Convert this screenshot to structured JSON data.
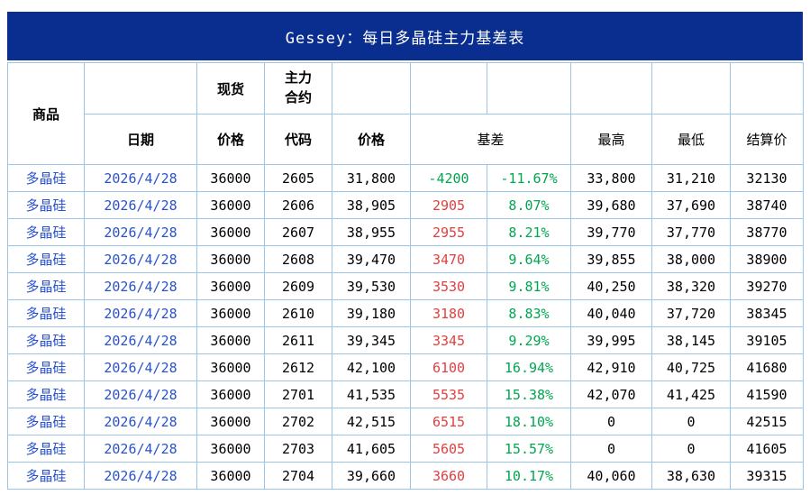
{
  "title": "Gessey：每日多晶硅主力基差表",
  "colors": {
    "title_bg": "#0A2E8F",
    "border": "#9DC3E6",
    "blue_text": "#2952CC",
    "red": "#E04040",
    "green": "#00A650"
  },
  "chart_data": {
    "type": "table",
    "header": {
      "commodity": "商品",
      "date": "日期",
      "spot_group": "现货",
      "main_contract_group": [
        "主力",
        "合约"
      ],
      "spot_price": "价格",
      "code": "代码",
      "price": "价格",
      "basis": "基差",
      "high": "最高",
      "low": "最低",
      "settle": "结算价"
    },
    "rows": [
      {
        "commodity": "多晶硅",
        "date": "2026/4/28",
        "spot": "36000",
        "code": "2605",
        "price": "31,800",
        "basis": "-4200",
        "basis_class": "green",
        "pct": "-11.67%",
        "high": "33,800",
        "low": "31,210",
        "settle": "32130"
      },
      {
        "commodity": "多晶硅",
        "date": "2026/4/28",
        "spot": "36000",
        "code": "2606",
        "price": "38,905",
        "basis": "2905",
        "basis_class": "red",
        "pct": "8.07%",
        "high": "39,680",
        "low": "37,690",
        "settle": "38740"
      },
      {
        "commodity": "多晶硅",
        "date": "2026/4/28",
        "spot": "36000",
        "code": "2607",
        "price": "38,955",
        "basis": "2955",
        "basis_class": "red",
        "pct": "8.21%",
        "high": "39,770",
        "low": "37,770",
        "settle": "38770"
      },
      {
        "commodity": "多晶硅",
        "date": "2026/4/28",
        "spot": "36000",
        "code": "2608",
        "price": "39,470",
        "basis": "3470",
        "basis_class": "red",
        "pct": "9.64%",
        "high": "39,855",
        "low": "38,000",
        "settle": "38900"
      },
      {
        "commodity": "多晶硅",
        "date": "2026/4/28",
        "spot": "36000",
        "code": "2609",
        "price": "39,530",
        "basis": "3530",
        "basis_class": "red",
        "pct": "9.81%",
        "high": "40,250",
        "low": "38,320",
        "settle": "39270"
      },
      {
        "commodity": "多晶硅",
        "date": "2026/4/28",
        "spot": "36000",
        "code": "2610",
        "price": "39,180",
        "basis": "3180",
        "basis_class": "red",
        "pct": "8.83%",
        "high": "40,040",
        "low": "37,720",
        "settle": "38345"
      },
      {
        "commodity": "多晶硅",
        "date": "2026/4/28",
        "spot": "36000",
        "code": "2611",
        "price": "39,345",
        "basis": "3345",
        "basis_class": "red",
        "pct": "9.29%",
        "high": "39,995",
        "low": "38,145",
        "settle": "39105"
      },
      {
        "commodity": "多晶硅",
        "date": "2026/4/28",
        "spot": "36000",
        "code": "2612",
        "price": "42,100",
        "basis": "6100",
        "basis_class": "red",
        "pct": "16.94%",
        "high": "42,910",
        "low": "40,725",
        "settle": "41680"
      },
      {
        "commodity": "多晶硅",
        "date": "2026/4/28",
        "spot": "36000",
        "code": "2701",
        "price": "41,535",
        "basis": "5535",
        "basis_class": "red",
        "pct": "15.38%",
        "high": "42,070",
        "low": "41,425",
        "settle": "41590"
      },
      {
        "commodity": "多晶硅",
        "date": "2026/4/28",
        "spot": "36000",
        "code": "2702",
        "price": "42,515",
        "basis": "6515",
        "basis_class": "red",
        "pct": "18.10%",
        "high": "0",
        "low": "0",
        "settle": "42515"
      },
      {
        "commodity": "多晶硅",
        "date": "2026/4/28",
        "spot": "36000",
        "code": "2703",
        "price": "41,605",
        "basis": "5605",
        "basis_class": "red",
        "pct": "15.57%",
        "high": "0",
        "low": "0",
        "settle": "41605"
      },
      {
        "commodity": "多晶硅",
        "date": "2026/4/28",
        "spot": "36000",
        "code": "2704",
        "price": "39,660",
        "basis": "3660",
        "basis_class": "red",
        "pct": "10.17%",
        "high": "40,060",
        "low": "38,630",
        "settle": "39315"
      }
    ]
  }
}
